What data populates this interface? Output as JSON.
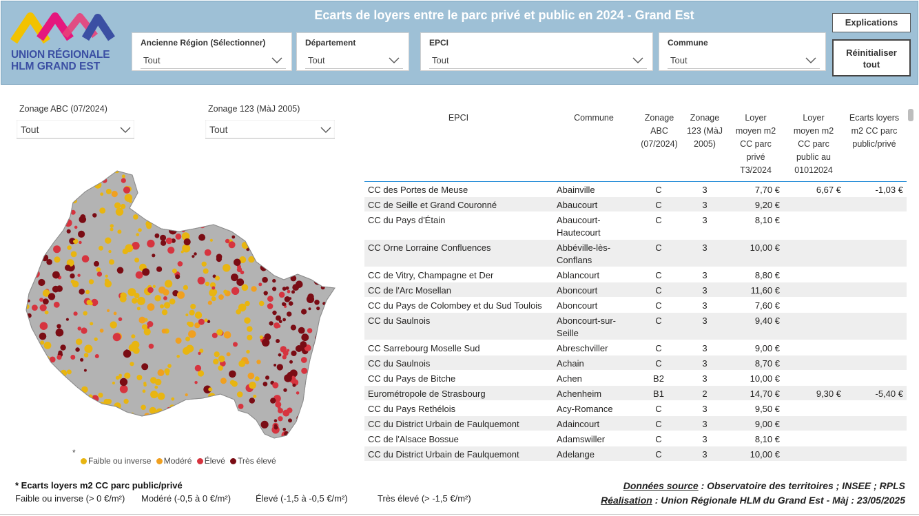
{
  "header": {
    "title": "Ecarts de loyers entre le parc privé et public en 2024 - Grand Est",
    "logo_line1": "UNION RÉGIONALE",
    "logo_line2": "HLM GRAND EST",
    "bg_color": "#9ec0d6"
  },
  "slicers": [
    {
      "label": "Ancienne Région (Sélectionner)",
      "value": "Tout"
    },
    {
      "label": "Département",
      "value": "Tout"
    },
    {
      "label": "EPCI",
      "value": "Tout"
    },
    {
      "label": "Commune",
      "value": "Tout"
    }
  ],
  "buttons": {
    "explications": "Explications",
    "reset_line1": "Réinitialiser",
    "reset_line2": "tout"
  },
  "filters": {
    "zonage_abc": {
      "label": "Zonage ABC (07/2024)",
      "value": "Tout"
    },
    "zonage_123": {
      "label": "Zonage 123 (MàJ 2005)",
      "value": "Tout"
    }
  },
  "map": {
    "legend_star": "*",
    "legend": [
      {
        "label": "Faible ou inverse",
        "color": "#e8b511"
      },
      {
        "label": "Modéré",
        "color": "#f0a020"
      },
      {
        "label": "Élevé",
        "color": "#d6343f"
      },
      {
        "label": "Très élevé",
        "color": "#7a0c14"
      }
    ],
    "base_color": "#b3b3b3"
  },
  "table": {
    "headers": {
      "epci": "EPCI",
      "commune": "Commune",
      "zonage_abc": [
        "Zonage",
        "ABC",
        "(07/2024)"
      ],
      "zonage_123": [
        "Zonage",
        "123 (MàJ",
        "2005)"
      ],
      "loyer_prive": [
        "Loyer",
        "moyen m2",
        "CC parc",
        "privé",
        "T3/2024"
      ],
      "loyer_public": [
        "Loyer",
        "moyen m2",
        "CC parc",
        "public au",
        "01012024"
      ],
      "ecart": [
        "Ecarts loyers",
        "m2 CC parc",
        "public/privé"
      ]
    },
    "rows": [
      {
        "epci": "CC des Portes de Meuse",
        "commune": [
          "Abainville"
        ],
        "abc": "C",
        "z123": "3",
        "prive": "7,70 €",
        "public": "6,67 €",
        "ecart": "-1,03 €"
      },
      {
        "epci": "CC de Seille et Grand Couronné",
        "commune": [
          "Abaucourt"
        ],
        "abc": "C",
        "z123": "3",
        "prive": "9,20 €",
        "public": "",
        "ecart": ""
      },
      {
        "epci": "CC du Pays d'Étain",
        "commune": [
          "Abaucourt-",
          "Hautecourt"
        ],
        "abc": "C",
        "z123": "3",
        "prive": "8,10 €",
        "public": "",
        "ecart": ""
      },
      {
        "epci": "CC Orne Lorraine Confluences",
        "commune": [
          "Abbéville-lès-",
          "Conflans"
        ],
        "abc": "C",
        "z123": "3",
        "prive": "10,00 €",
        "public": "",
        "ecart": ""
      },
      {
        "epci": "CC de Vitry, Champagne et Der",
        "commune": [
          "Ablancourt"
        ],
        "abc": "C",
        "z123": "3",
        "prive": "8,80 €",
        "public": "",
        "ecart": ""
      },
      {
        "epci": "CC de l'Arc Mosellan",
        "commune": [
          "Aboncourt"
        ],
        "abc": "C",
        "z123": "3",
        "prive": "11,60 €",
        "public": "",
        "ecart": ""
      },
      {
        "epci": "CC du Pays de Colombey et du Sud Toulois",
        "commune": [
          "Aboncourt"
        ],
        "abc": "C",
        "z123": "3",
        "prive": "7,60 €",
        "public": "",
        "ecart": ""
      },
      {
        "epci": "CC du Saulnois",
        "commune": [
          "Aboncourt-sur-",
          "Seille"
        ],
        "abc": "C",
        "z123": "3",
        "prive": "9,40 €",
        "public": "",
        "ecart": ""
      },
      {
        "epci": "CC Sarrebourg Moselle Sud",
        "commune": [
          "Abreschviller"
        ],
        "abc": "C",
        "z123": "3",
        "prive": "9,00 €",
        "public": "",
        "ecart": ""
      },
      {
        "epci": "CC du Saulnois",
        "commune": [
          "Achain"
        ],
        "abc": "C",
        "z123": "3",
        "prive": "8,70 €",
        "public": "",
        "ecart": ""
      },
      {
        "epci": "CC du Pays de Bitche",
        "commune": [
          "Achen"
        ],
        "abc": "B2",
        "z123": "3",
        "prive": "10,00 €",
        "public": "",
        "ecart": ""
      },
      {
        "epci": "Eurométropole de Strasbourg",
        "commune": [
          "Achenheim"
        ],
        "abc": "B1",
        "z123": "2",
        "prive": "14,70 €",
        "public": "9,30 €",
        "ecart": "-5,40 €"
      },
      {
        "epci": "CC du Pays Rethélois",
        "commune": [
          "Acy-Romance"
        ],
        "abc": "C",
        "z123": "3",
        "prive": "9,50 €",
        "public": "",
        "ecart": ""
      },
      {
        "epci": "CC du District Urbain de Faulquemont",
        "commune": [
          "Adaincourt"
        ],
        "abc": "C",
        "z123": "3",
        "prive": "9,00 €",
        "public": "",
        "ecart": ""
      },
      {
        "epci": "CC de l'Alsace Bossue",
        "commune": [
          "Adamswiller"
        ],
        "abc": "C",
        "z123": "3",
        "prive": "8,10 €",
        "public": "",
        "ecart": ""
      },
      {
        "epci": "CC du District Urbain de Faulquemont",
        "commune": [
          "Adelange"
        ],
        "abc": "C",
        "z123": "3",
        "prive": "10,00 €",
        "public": "",
        "ecart": ""
      }
    ]
  },
  "notes": {
    "title": "* Ecarts loyers m2 CC parc public/privé",
    "items": [
      "Faible ou inverse (> 0 €/m²)",
      "Modéré (-0,5 à 0 €/m²)",
      "Élevé (-1,5 à -0,5 €/m²)",
      "Très élevé (> -1,5 €/m²)"
    ]
  },
  "source": {
    "label1": "Données source",
    "text1": " : Observatoire des territoires ; INSEE ; RPLS",
    "label2": "Réalisation",
    "text2": " : Union Régionale HLM du Grand Est - Màj : 23/05/2025"
  }
}
